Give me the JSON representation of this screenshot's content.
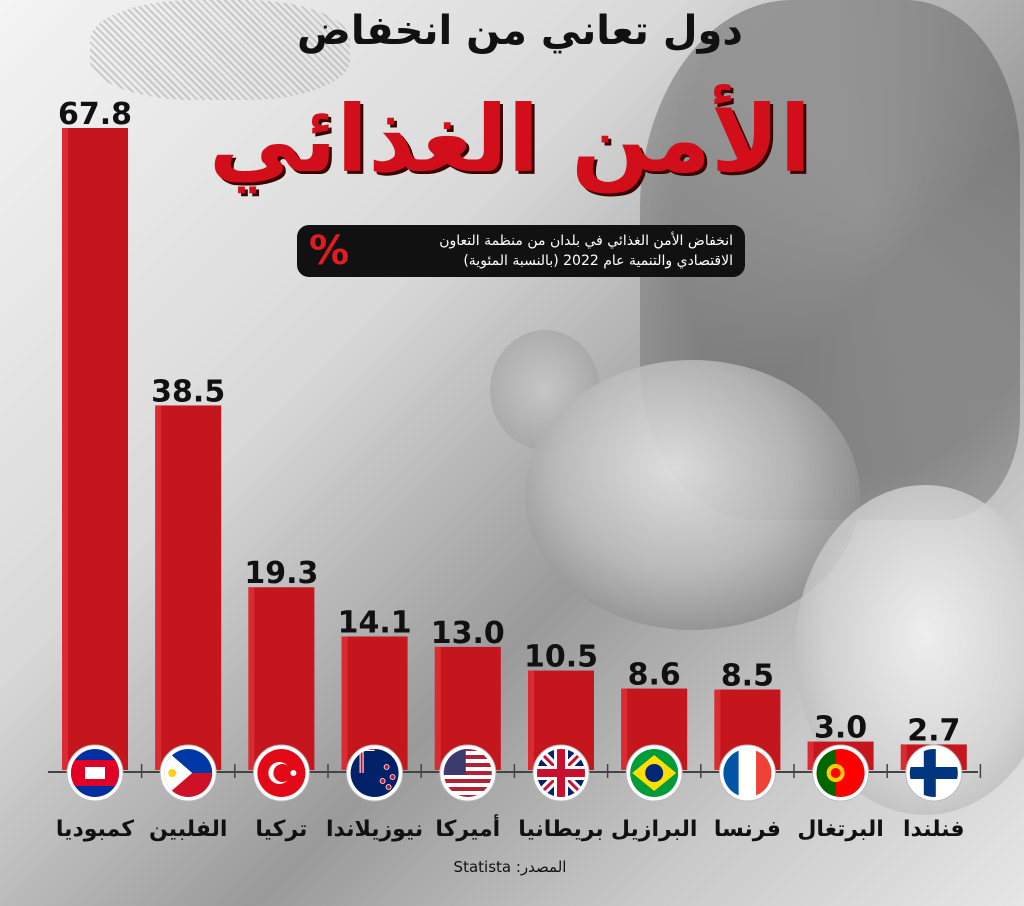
{
  "header": {
    "title_top": "دول تعاني من انخفاض",
    "title_main": "الأمن الغذائي",
    "subtitle_line1": "انخفاض الأمن الغذائي في بلدان من منظمة التعاون",
    "subtitle_line2": "الاقتصادي والتنمية عام 2022 (بالنسبة المئوية)",
    "percent_symbol": "%"
  },
  "source": "المصدر: Statista",
  "colors": {
    "bar": "#c4161c",
    "title_red": "#d10e19",
    "label": "#111111"
  },
  "chart_data": {
    "type": "bar",
    "title": "الأمن الغذائي",
    "categories": [
      "كمبوديا",
      "الفلبين",
      "تركيا",
      "نيوزيلاندا",
      "أميركا",
      "بريطانيا",
      "البرازيل",
      "فرنسا",
      "البرتغال",
      "فنلندا"
    ],
    "values": [
      67.8,
      38.5,
      19.3,
      14.1,
      13.0,
      10.5,
      8.6,
      8.5,
      3.0,
      2.7
    ],
    "value_labels": [
      "67.8",
      "38.5",
      "19.3",
      "14.1",
      "13.0",
      "10.5",
      "8.6",
      "8.5",
      "3.0",
      "2.7"
    ],
    "flags": [
      "cambodia-flag",
      "philippines-flag",
      "turkey-flag",
      "new-zealand-flag",
      "usa-flag",
      "uk-flag",
      "brazil-flag",
      "france-flag",
      "portugal-flag",
      "finland-flag"
    ],
    "ylim": [
      0,
      67.8
    ],
    "xlabel": "",
    "ylabel": "",
    "grid": false
  }
}
